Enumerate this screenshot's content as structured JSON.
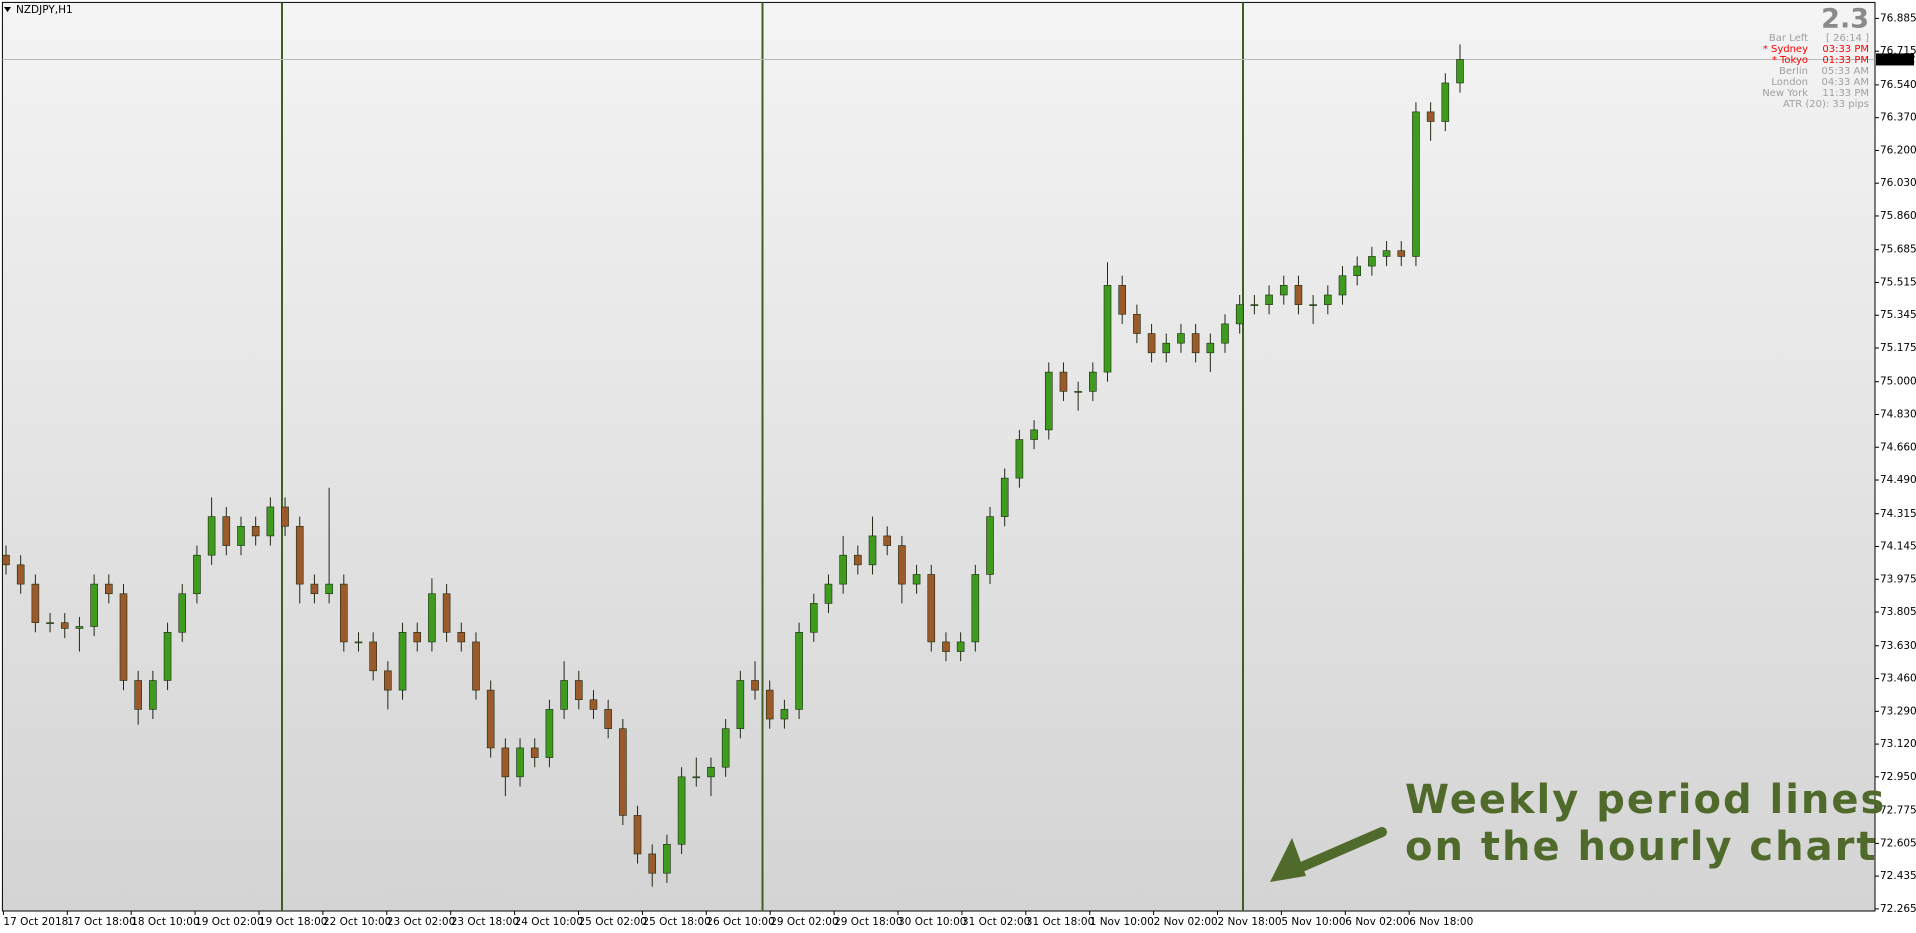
{
  "chart_data": {
    "type": "candlestick",
    "title": "NZDJPY,H1",
    "bull_color": "#3e9b1e",
    "bear_color": "#9a5a2a",
    "wick_color": "#1e2a14",
    "period_line_color": "#3f5f22",
    "ylim": [
      72.254,
      76.968
    ],
    "yticks": [
      76.885,
      76.715,
      {
        "value": 76.54,
        "label": "76.540"
      },
      {
        "value": 76.37,
        "label": "76.370"
      },
      {
        "value": 76.2,
        "label": "76.200"
      },
      {
        "value": 76.03,
        "label": "76.030"
      },
      {
        "value": 75.86,
        "label": "75.860"
      },
      75.685,
      75.515,
      75.345,
      75.175,
      {
        "value": 75,
        "label": "75.000"
      },
      {
        "value": 74.83,
        "label": "74.830"
      },
      {
        "value": 74.66,
        "label": "74.660"
      },
      {
        "value": 74.49,
        "label": "74.490"
      },
      74.315,
      74.145,
      73.975,
      73.805,
      {
        "value": 73.63,
        "label": "73.630"
      },
      {
        "value": 73.46,
        "label": "73.460"
      },
      {
        "value": 73.29,
        "label": "73.290"
      },
      {
        "value": 73.12,
        "label": "73.120"
      },
      {
        "value": 72.95,
        "label": "72.950"
      },
      72.775,
      72.605,
      72.435,
      72.265
    ],
    "x_tick_labels": [
      "17 Oct 2018",
      "17 Oct 18:00",
      "18 Oct 10:00",
      "19 Oct 02:00",
      "19 Oct 18:00",
      "22 Oct 10:00",
      "23 Oct 02:00",
      "23 Oct 18:00",
      "24 Oct 10:00",
      "25 Oct 02:00",
      "25 Oct 18:00",
      "26 Oct 10:00",
      "29 Oct 02:00",
      "29 Oct 18:00",
      "30 Oct 10:00",
      "31 Oct 02:00",
      "31 Oct 18:00",
      "1 Nov 10:00",
      "2 Nov 02:00",
      "2 Nov 18:00",
      "5 Nov 10:00",
      "6 Nov 02:00",
      "6 Nov 18:00"
    ],
    "open": [
      74.1,
      74.05,
      73.95,
      73.75,
      73.75,
      73.72,
      73.73,
      73.95,
      73.9,
      73.45,
      73.3,
      73.45,
      73.7,
      73.9,
      74.1,
      74.3,
      74.15,
      74.25,
      74.2,
      74.35,
      74.25,
      73.95,
      73.9,
      73.95,
      73.65,
      73.65,
      73.5,
      73.4,
      73.7,
      73.65,
      73.9,
      73.7,
      73.65,
      73.4,
      73.1,
      72.95,
      73.1,
      73.05,
      73.3,
      73.45,
      73.35,
      73.3,
      73.2,
      72.75,
      72.55,
      72.45,
      72.6,
      72.95,
      72.95,
      73.0,
      73.2,
      73.45,
      73.4,
      73.25,
      73.3,
      73.7,
      73.85,
      73.95,
      74.1,
      74.05,
      74.2,
      74.15,
      73.95,
      74.0,
      73.65,
      73.6,
      73.65,
      74.0,
      74.3,
      74.5,
      74.7,
      74.75,
      75.05,
      74.95,
      74.95,
      75.05,
      75.5,
      75.35,
      75.25,
      75.15,
      75.2,
      75.25,
      75.15,
      75.2,
      75.3,
      75.4,
      75.4,
      75.45,
      75.5,
      75.4,
      75.4,
      75.45,
      75.55,
      75.6,
      75.65,
      75.68,
      75.65,
      76.4,
      76.35,
      76.55
    ],
    "high": [
      74.15,
      74.1,
      74.0,
      73.8,
      73.8,
      73.78,
      74.0,
      74.0,
      73.95,
      73.5,
      73.5,
      73.75,
      73.95,
      74.15,
      74.4,
      74.35,
      74.3,
      74.3,
      74.4,
      74.4,
      74.3,
      74.0,
      74.45,
      74.0,
      73.7,
      73.7,
      73.55,
      73.75,
      73.75,
      73.98,
      73.95,
      73.75,
      73.7,
      73.45,
      73.15,
      73.15,
      73.15,
      73.35,
      73.55,
      73.5,
      73.4,
      73.35,
      73.25,
      72.8,
      72.6,
      72.65,
      73.0,
      73.05,
      73.05,
      73.25,
      73.5,
      73.55,
      73.45,
      73.35,
      73.75,
      73.9,
      74.0,
      74.2,
      74.15,
      74.3,
      74.25,
      74.2,
      74.05,
      74.05,
      73.7,
      73.7,
      74.05,
      74.35,
      74.55,
      74.75,
      74.8,
      75.1,
      75.1,
      75.0,
      75.1,
      75.62,
      75.55,
      75.4,
      75.3,
      75.25,
      75.3,
      75.3,
      75.25,
      75.35,
      75.45,
      75.45,
      75.5,
      75.55,
      75.55,
      75.45,
      75.5,
      75.6,
      75.65,
      75.7,
      75.73,
      75.73,
      76.45,
      76.45,
      76.6,
      76.75
    ],
    "low": [
      74.0,
      73.9,
      73.7,
      73.7,
      73.67,
      73.6,
      73.68,
      73.85,
      73.4,
      73.22,
      73.25,
      73.4,
      73.65,
      73.85,
      74.05,
      74.1,
      74.1,
      74.15,
      74.15,
      74.2,
      73.85,
      73.85,
      73.85,
      73.6,
      73.6,
      73.45,
      73.3,
      73.35,
      73.6,
      73.6,
      73.65,
      73.6,
      73.35,
      73.05,
      72.85,
      72.9,
      73.0,
      73.0,
      73.25,
      73.3,
      73.25,
      73.15,
      72.7,
      72.5,
      72.38,
      72.4,
      72.55,
      72.9,
      72.85,
      72.95,
      73.15,
      73.35,
      73.2,
      73.2,
      73.25,
      73.65,
      73.8,
      73.9,
      74.0,
      74.0,
      74.1,
      73.85,
      73.9,
      73.6,
      73.55,
      73.55,
      73.6,
      73.95,
      74.25,
      74.45,
      74.65,
      74.7,
      74.9,
      74.85,
      74.9,
      75.0,
      75.3,
      75.2,
      75.1,
      75.1,
      75.15,
      75.1,
      75.05,
      75.15,
      75.25,
      75.35,
      75.35,
      75.4,
      75.35,
      75.3,
      75.35,
      75.4,
      75.5,
      75.55,
      75.6,
      75.6,
      75.6,
      76.25,
      76.3,
      76.5
    ],
    "close": [
      74.05,
      73.95,
      73.75,
      73.75,
      73.72,
      73.73,
      73.95,
      73.9,
      73.45,
      73.3,
      73.45,
      73.7,
      73.9,
      74.1,
      74.3,
      74.15,
      74.25,
      74.2,
      74.35,
      74.25,
      73.95,
      73.9,
      73.95,
      73.65,
      73.65,
      73.5,
      73.4,
      73.7,
      73.65,
      73.9,
      73.7,
      73.65,
      73.4,
      73.1,
      72.95,
      73.1,
      73.05,
      73.3,
      73.45,
      73.35,
      73.3,
      73.2,
      72.75,
      72.55,
      72.45,
      72.6,
      72.95,
      72.95,
      73.0,
      73.2,
      73.45,
      73.4,
      73.25,
      73.3,
      73.7,
      73.85,
      73.95,
      74.1,
      74.05,
      74.2,
      74.15,
      73.95,
      74.0,
      73.65,
      73.6,
      73.65,
      74.0,
      74.3,
      74.5,
      74.7,
      74.75,
      75.05,
      74.95,
      74.95,
      75.05,
      75.5,
      75.35,
      75.25,
      75.15,
      75.2,
      75.25,
      75.15,
      75.2,
      75.3,
      75.4,
      75.4,
      75.45,
      75.5,
      75.4,
      75.4,
      75.45,
      75.55,
      75.6,
      75.65,
      75.68,
      75.65,
      76.4,
      76.35,
      76.55,
      76.672
    ],
    "current_price": 76.672,
    "spread": "2.3",
    "info_panel": [
      {
        "label": "Bar Left",
        "value": "[ 26:14 ]",
        "color": "#a0a0a0"
      },
      {
        "label": "* Sydney",
        "value": "03:33 PM",
        "color": "#ff0000"
      },
      {
        "label": "* Tokyo",
        "value": "01:33 PM",
        "color": "#ff0000"
      },
      {
        "label": "Berlin",
        "value": "05:33 AM",
        "color": "#a0a0a0"
      },
      {
        "label": "London",
        "value": "04:33 AM",
        "color": "#a0a0a0"
      },
      {
        "label": "New York",
        "value": "11:33 PM",
        "color": "#a0a0a0"
      }
    ],
    "atr": "ATR (20): 33 pips",
    "annotation": [
      "Weekly period lines",
      "on the hourly chart"
    ],
    "annotation_color": "#4f6a2a"
  }
}
